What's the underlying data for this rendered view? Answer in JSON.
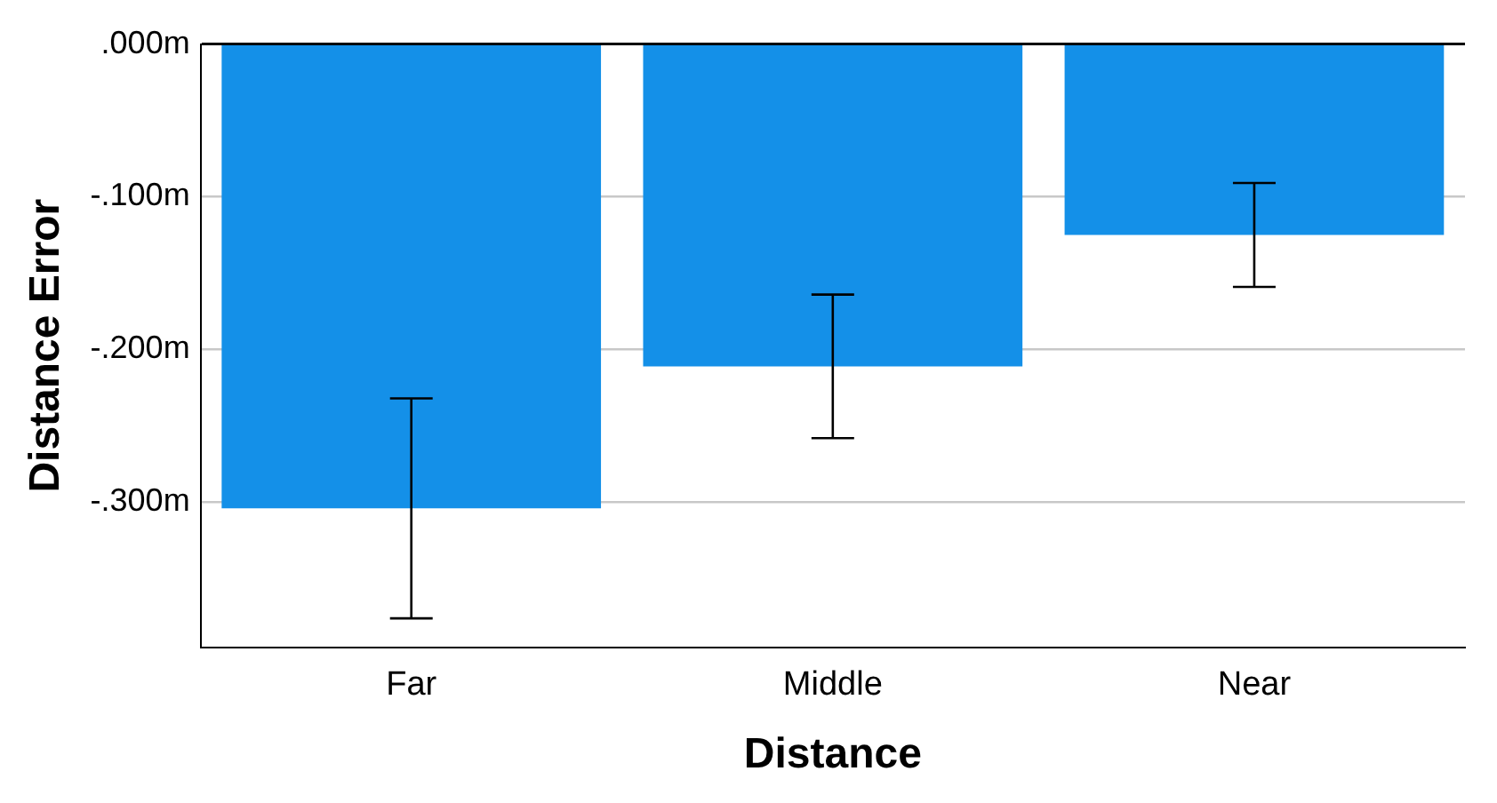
{
  "chart_data": {
    "type": "bar",
    "xlabel": "Distance",
    "ylabel": "Distance Error",
    "categories": [
      "Far",
      "Middle",
      "Near"
    ],
    "values": [
      -0.304,
      -0.211,
      -0.125
    ],
    "errors": [
      0.072,
      0.047,
      0.034
    ],
    "color": "#1490e8",
    "ylim": [
      -0.395,
      0
    ],
    "yticks": [
      {
        "value": 0,
        "label": ".000m"
      },
      {
        "value": -0.1,
        "label": "-.100m"
      },
      {
        "value": -0.2,
        "label": "-.200m"
      },
      {
        "value": -0.3,
        "label": "-.300m"
      }
    ],
    "grid": "y",
    "legend": false
  }
}
